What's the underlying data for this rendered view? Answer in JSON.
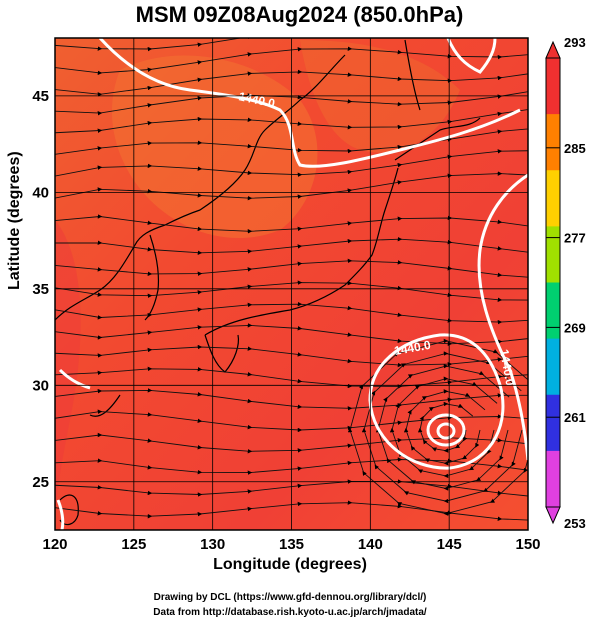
{
  "title": "MSM 09Z08Aug2024 (850.0hPa)",
  "axes": {
    "xlabel": "Longitude (degrees)",
    "ylabel": "Latitude  (degrees)",
    "xlim": [
      120,
      150
    ],
    "ylim": [
      22.5,
      48
    ],
    "xticks": [
      "120",
      "125",
      "130",
      "135",
      "140",
      "145",
      "150"
    ],
    "yticks": [
      "25",
      "30",
      "35",
      "40",
      "45"
    ]
  },
  "colorbar": {
    "labels": [
      "293",
      "285",
      "277",
      "269",
      "261",
      "253"
    ],
    "range": [
      253,
      293
    ],
    "colors": [
      "#e040e0",
      "#3030e0",
      "#00b0e0",
      "#00d070",
      "#a0e000",
      "#ffd000",
      "#ff8000",
      "#f03030"
    ]
  },
  "contours": [
    {
      "label": "1440.0"
    },
    {
      "label": "1440.0"
    },
    {
      "label": "1440.0"
    }
  ],
  "credits": {
    "line1": "Drawing by DCL (https://www.gfd-dennou.org/library/dcl/)",
    "line2": "Data from http://database.rish.kyoto-u.ac.jp/arch/jmadata/"
  }
}
